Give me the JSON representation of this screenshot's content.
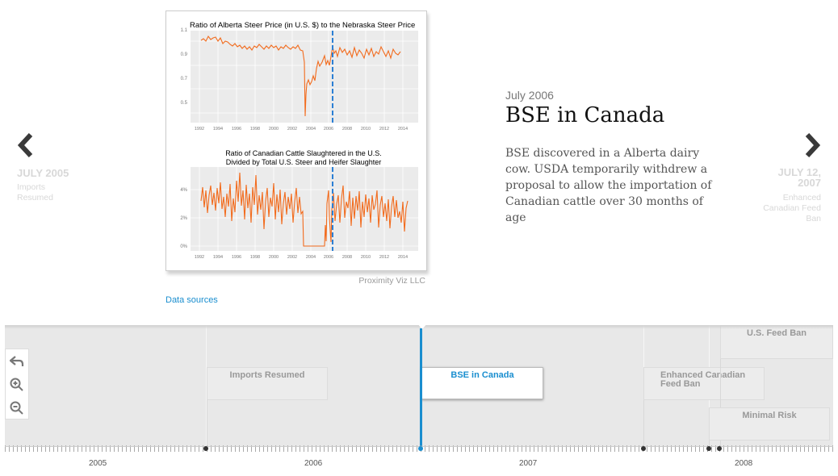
{
  "slide": {
    "date": "July 2006",
    "headline": "BSE in Canada",
    "description": "BSE discovered in a Alberta dairy cow. USDA temporarily withdrew a proposal to allow the importation of Canadian cattle over 30 months of age",
    "credit": "Proximity Viz LLC",
    "data_sources_label": "Data sources"
  },
  "prev": {
    "date": "JULY 2005",
    "title": "Imports Resumed"
  },
  "next": {
    "date": "JULY 12, 2007",
    "title": "Enhanced Canadian Feed Ban"
  },
  "chart1": {
    "title": "Ratio of Alberta Steer Price (in U.S. $) to the Nebraska Steer Price",
    "yticks": [
      "1.1",
      "0.9",
      "0.7",
      "0.5"
    ],
    "xticks": [
      "1992",
      "1994",
      "1996",
      "1998",
      "2000",
      "2002",
      "2004",
      "2006",
      "2008",
      "2010",
      "2012",
      "2014"
    ]
  },
  "chart2": {
    "title_line1": "Ratio of Canadian Cattle Slaughtered in the U.S.",
    "title_line2": "Divided by Total U.S. Steer and Heifer Slaughter",
    "yticks": [
      "4%",
      "2%",
      "0%"
    ],
    "xticks": [
      "1992",
      "1994",
      "1996",
      "1998",
      "2000",
      "2002",
      "2004",
      "2006",
      "2008",
      "2010",
      "2012",
      "2014"
    ]
  },
  "timeline": {
    "markers": [
      {
        "label": "Imports Resumed"
      },
      {
        "label": "BSE in Canada"
      },
      {
        "label": "Enhanced Canadian Feed Ban"
      },
      {
        "label": "U.S. Feed Ban"
      },
      {
        "label": "Minimal Risk"
      }
    ],
    "years": [
      "2005",
      "2006",
      "2007",
      "2008"
    ]
  },
  "icons": {
    "back": "back-arrow-icon",
    "zoom_in": "zoom-in-icon",
    "zoom_out": "zoom-out-icon"
  },
  "colors": {
    "accent": "#1a8ecf",
    "series": "#f26b1d",
    "event_line": "#2b7fd4"
  }
}
